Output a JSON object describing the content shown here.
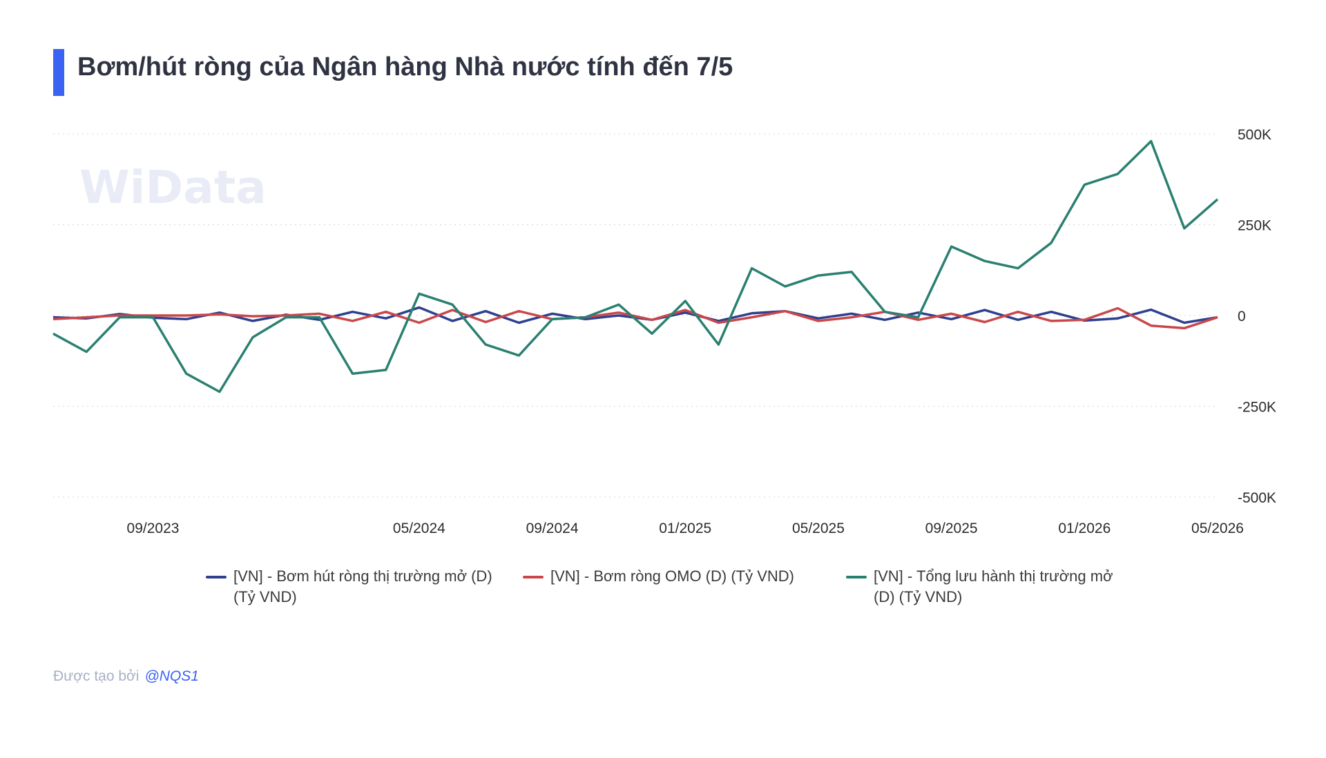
{
  "title": "Bơm/hút ròng của Ngân hàng Nhà nước tính đến 7/5",
  "watermark": "WiData",
  "credit": {
    "prefix": "Được tạo bởi",
    "author": "@NQS1"
  },
  "colors": {
    "accent": "#3b63f3",
    "grid": "#d6d6d6"
  },
  "chart_data": {
    "type": "line",
    "y_ticks": [
      "500K",
      "250K",
      "0",
      "-250K",
      "-500K"
    ],
    "ylim": [
      -500000,
      500000
    ],
    "x_ticks": [
      "09/2023",
      "05/2024",
      "09/2024",
      "01/2025",
      "05/2025",
      "09/2025",
      "01/2026",
      "05/2026"
    ],
    "grid": true,
    "legend": "bottom",
    "series": [
      {
        "name": "[VN] - Bơm hút ròng thị trường mở (D) (Tỷ VND)",
        "color": "#2e3f8f",
        "x": [
          "06/2023",
          "07/2023",
          "08/2023",
          "09/2023",
          "10/2023",
          "11/2023",
          "12/2023",
          "01/2024",
          "02/2024",
          "03/2024",
          "04/2024",
          "05/2024",
          "06/2024",
          "07/2024",
          "08/2024",
          "09/2024",
          "10/2024",
          "11/2024",
          "12/2024",
          "01/2025",
          "02/2025",
          "03/2025",
          "04/2025",
          "05/2025",
          "06/2025",
          "07/2025",
          "08/2025",
          "09/2025",
          "10/2025",
          "11/2025",
          "12/2025",
          "01/2026",
          "02/2026",
          "03/2026",
          "04/2026",
          "05/2026"
        ],
        "values": [
          -5000,
          -8000,
          4000,
          -6000,
          -10000,
          8000,
          -15000,
          2000,
          -12000,
          10000,
          -8000,
          22000,
          -15000,
          12000,
          -20000,
          5000,
          -10000,
          0,
          -12000,
          8000,
          -15000,
          6000,
          12000,
          -8000,
          5000,
          -12000,
          8000,
          -10000,
          15000,
          -12000,
          10000,
          -14000,
          -8000,
          16000,
          -20000,
          -5000
        ]
      },
      {
        "name": "[VN] - Bơm ròng OMO (D) (Tỷ VND)",
        "color": "#c9474a",
        "x": [
          "06/2023",
          "07/2023",
          "08/2023",
          "09/2023",
          "10/2023",
          "11/2023",
          "12/2023",
          "01/2024",
          "02/2024",
          "03/2024",
          "04/2024",
          "05/2024",
          "06/2024",
          "07/2024",
          "08/2024",
          "09/2024",
          "10/2024",
          "11/2024",
          "12/2024",
          "01/2025",
          "02/2025",
          "03/2025",
          "04/2025",
          "05/2025",
          "06/2025",
          "07/2025",
          "08/2025",
          "09/2025",
          "10/2025",
          "11/2025",
          "12/2025",
          "01/2026",
          "02/2026",
          "03/2026",
          "04/2026",
          "05/2026"
        ],
        "values": [
          -10000,
          -5000,
          0,
          0,
          0,
          3000,
          -2000,
          0,
          5000,
          -15000,
          10000,
          -20000,
          15000,
          -18000,
          12000,
          -10000,
          -5000,
          8000,
          -12000,
          15000,
          -20000,
          -5000,
          12000,
          -15000,
          -5000,
          10000,
          -12000,
          5000,
          -18000,
          10000,
          -15000,
          -12000,
          20000,
          -28000,
          -35000,
          -5000
        ]
      },
      {
        "name": "[VN] - Tổng lưu hành thị trường mở (D) (Tỷ VND)",
        "color": "#2a8070",
        "x": [
          "06/2023",
          "07/2023",
          "08/2023",
          "09/2023",
          "10/2023",
          "11/2023",
          "12/2023",
          "01/2024",
          "02/2024",
          "03/2024",
          "04/2024",
          "05/2024",
          "06/2024",
          "07/2024",
          "08/2024",
          "09/2024",
          "10/2024",
          "11/2024",
          "12/2024",
          "01/2025",
          "02/2025",
          "03/2025",
          "04/2025",
          "05/2025",
          "06/2025",
          "07/2025",
          "08/2025",
          "09/2025",
          "10/2025",
          "11/2025",
          "12/2025",
          "01/2026",
          "02/2026",
          "03/2026",
          "04/2026",
          "05/2026"
        ],
        "values": [
          -50000,
          -100000,
          -5000,
          -5000,
          -160000,
          -210000,
          -60000,
          -5000,
          -5000,
          -160000,
          -150000,
          60000,
          30000,
          -80000,
          -110000,
          -10000,
          -5000,
          30000,
          -50000,
          40000,
          -80000,
          130000,
          80000,
          110000,
          120000,
          10000,
          -5000,
          190000,
          150000,
          130000,
          200000,
          360000,
          390000,
          480000,
          240000,
          320000
        ]
      }
    ]
  }
}
